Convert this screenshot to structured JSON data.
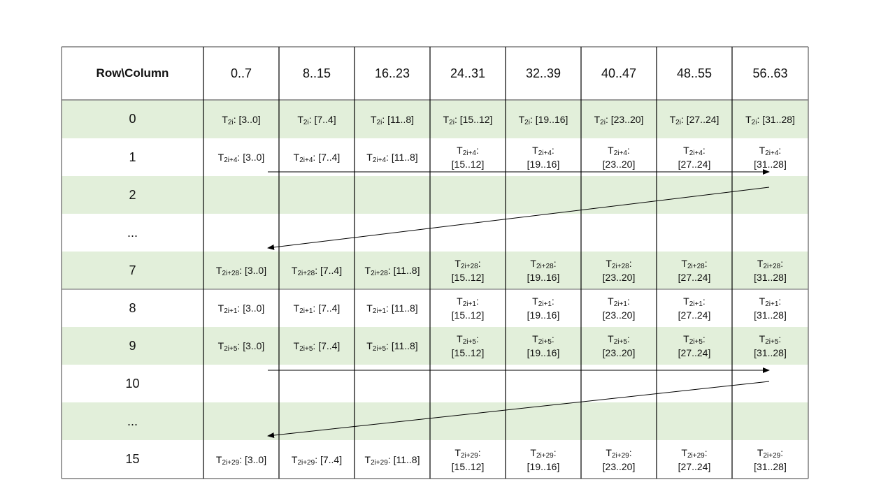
{
  "header": {
    "corner": "Row\\Column",
    "columns": [
      "0..7",
      "8..15",
      "16..23",
      "24..31",
      "32..39",
      "40..47",
      "48..55",
      "56..63"
    ]
  },
  "cell_prefix": "T",
  "ranges": [
    "[3..0]",
    "[7..4]",
    "[11..8]",
    "[15..12]",
    "[19..16]",
    "[23..20]",
    "[27..24]",
    "[31..28]"
  ],
  "rows": [
    {
      "label": "0",
      "sub": "2i",
      "shaded": true
    },
    {
      "label": "1",
      "sub": "2i+4",
      "shaded": false
    },
    {
      "label": "2",
      "sub": null,
      "shaded": true
    },
    {
      "label": "...",
      "sub": null,
      "shaded": false
    },
    {
      "label": "7",
      "sub": "2i+28",
      "shaded": true
    },
    {
      "label": "8",
      "sub": "2i+1",
      "shaded": false
    },
    {
      "label": "9",
      "sub": "2i+5",
      "shaded": true
    },
    {
      "label": "10",
      "sub": null,
      "shaded": false
    },
    {
      "label": "...",
      "sub": null,
      "shaded": true
    },
    {
      "label": "15",
      "sub": "2i+29",
      "shaded": false
    }
  ],
  "colors": {
    "shade": "#e2efda",
    "line": "#000000",
    "border": "#7f7f7f"
  }
}
